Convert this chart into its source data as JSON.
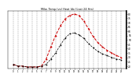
{
  "title": "Milw. Temp.(vs) Heat Idx (Last 24 Hrs)",
  "hours": [
    0,
    1,
    2,
    3,
    4,
    5,
    6,
    7,
    8,
    9,
    10,
    11,
    12,
    13,
    14,
    15,
    16,
    17,
    18,
    19,
    20,
    21,
    22,
    23
  ],
  "temp": [
    22,
    20,
    20,
    19,
    19,
    19,
    20,
    22,
    28,
    35,
    44,
    52,
    57,
    58,
    56,
    52,
    46,
    41,
    37,
    34,
    32,
    30,
    28,
    27
  ],
  "heat_index": [
    22,
    20,
    20,
    19,
    19,
    19,
    20,
    28,
    42,
    55,
    66,
    74,
    78,
    80,
    78,
    72,
    63,
    54,
    47,
    42,
    38,
    35,
    32,
    30
  ],
  "temp_color": "#000000",
  "heat_color": "#cc0000",
  "bg_color": "#ffffff",
  "grid_color": "#999999",
  "ylim": [
    17,
    83
  ],
  "ytick_vals": [
    20,
    25,
    30,
    35,
    40,
    45,
    50,
    55,
    60,
    65,
    70,
    75,
    80
  ],
  "ytick_labels": [
    "20",
    "25",
    "30",
    "35",
    "40",
    "45",
    "50",
    "55",
    "60",
    "65",
    "70",
    "75",
    "80"
  ],
  "xtick_labels": [
    "0",
    "1",
    "2",
    "3",
    "4",
    "5",
    "6",
    "7",
    "8",
    "9",
    "10",
    "11",
    "12",
    "13",
    "14",
    "15",
    "16",
    "17",
    "18",
    "19",
    "20",
    "21",
    "22",
    "23"
  ]
}
